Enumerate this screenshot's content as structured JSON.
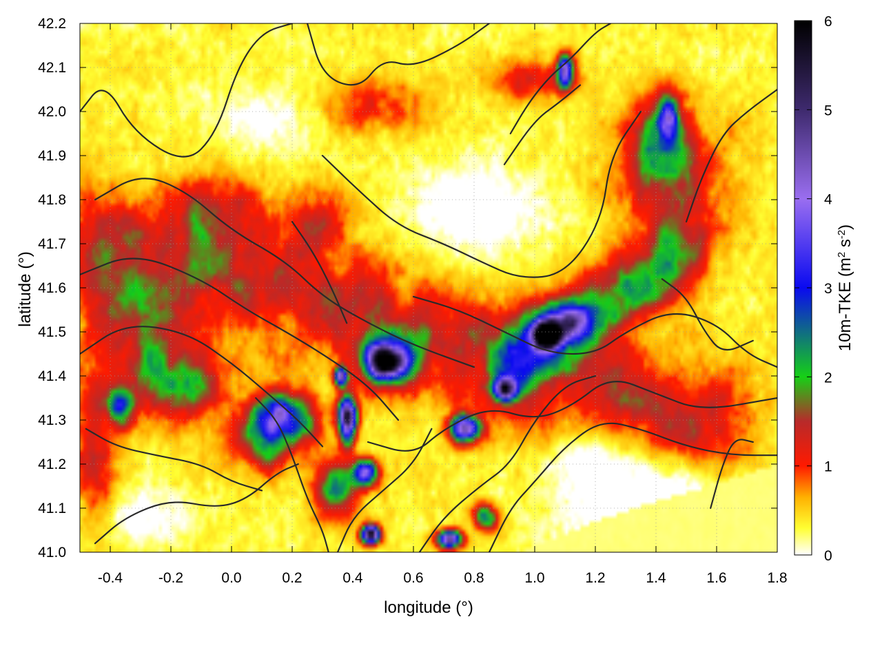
{
  "chart_data": {
    "type": "heatmap",
    "title": "",
    "xlabel": "longitude (°)",
    "ylabel": "latitude (°)",
    "xlim": [
      -0.5,
      1.8
    ],
    "ylim": [
      41.0,
      42.2
    ],
    "xticks": [
      -0.4,
      -0.2,
      0.0,
      0.2,
      0.4,
      0.6,
      0.8,
      1.0,
      1.2,
      1.4,
      1.6,
      1.8
    ],
    "xtick_labels": [
      "-0.4",
      "-0.2",
      "0.0",
      "0.2",
      "0.4",
      "0.6",
      "0.8",
      "1.0",
      "1.2",
      "1.4",
      "1.6",
      "1.8"
    ],
    "yticks": [
      41.0,
      41.1,
      41.2,
      41.3,
      41.4,
      41.5,
      41.6,
      41.7,
      41.8,
      41.9,
      42.0,
      42.1,
      42.2
    ],
    "ytick_labels": [
      "41.0",
      "41.1",
      "41.2",
      "41.3",
      "41.4",
      "41.5",
      "41.6",
      "41.7",
      "41.8",
      "41.9",
      "42.0",
      "42.1",
      "42.2"
    ],
    "grid": true,
    "colorbar": {
      "label_main": "10m-TKE (m",
      "label_sup1": "2",
      "label_mid": " s",
      "label_sup2": "-2",
      "label_end": ")",
      "range": [
        0,
        6
      ],
      "ticks": [
        0,
        1,
        2,
        3,
        4,
        5,
        6
      ],
      "tick_labels": [
        "0",
        "1",
        "2",
        "3",
        "4",
        "5",
        "6"
      ],
      "stops": [
        {
          "value": 0.0,
          "color": "#ffffff"
        },
        {
          "value": 0.3,
          "color": "#ffff33"
        },
        {
          "value": 0.65,
          "color": "#ffb000"
        },
        {
          "value": 1.0,
          "color": "#ff1a00"
        },
        {
          "value": 1.5,
          "color": "#b82a2a"
        },
        {
          "value": 2.0,
          "color": "#16d016"
        },
        {
          "value": 3.0,
          "color": "#0a0af0"
        },
        {
          "value": 4.0,
          "color": "#9a6ef0"
        },
        {
          "value": 5.0,
          "color": "#3e2a6e"
        },
        {
          "value": 6.0,
          "color": "#000000"
        }
      ]
    },
    "field_features": [
      {
        "name": "central-nw-se-band",
        "type": "band",
        "lon": [
          -0.45,
          1.6
        ],
        "lat": [
          41.72,
          41.28
        ],
        "width": 0.13,
        "value": 1.05
      },
      {
        "name": "upper-east-band",
        "type": "band",
        "lon": [
          0.95,
          1.5
        ],
        "lat": [
          41.45,
          41.68
        ],
        "width": 0.08,
        "value": 1.7
      },
      {
        "name": "west-hotspot",
        "type": "blob",
        "lon": -0.3,
        "lat": 41.5,
        "sx": 0.17,
        "sy": 0.16,
        "value": 1.25
      },
      {
        "name": "west-green",
        "type": "blob",
        "lon": -0.15,
        "lat": 41.38,
        "sx": 0.12,
        "sy": 0.07,
        "value": 1.9
      },
      {
        "name": "west-green-2",
        "type": "blob",
        "lon": -0.36,
        "lat": 41.33,
        "sx": 0.04,
        "sy": 0.04,
        "value": 2.4
      },
      {
        "name": "mid-west-red",
        "type": "blob",
        "lon": -0.05,
        "lat": 41.78,
        "sx": 0.18,
        "sy": 0.08,
        "value": 0.9
      },
      {
        "name": "core-blue-left",
        "type": "blob",
        "lon": 0.17,
        "lat": 41.31,
        "sx": 0.09,
        "sy": 0.05,
        "value": 3.1
      },
      {
        "name": "core-left-ring",
        "type": "blob",
        "lon": 0.12,
        "lat": 41.26,
        "sx": 0.12,
        "sy": 0.07,
        "value": 1.9
      },
      {
        "name": "core-blue-upper",
        "type": "blob",
        "lon": 0.52,
        "lat": 41.44,
        "sx": 0.09,
        "sy": 0.055,
        "value": 3.4
      },
      {
        "name": "core-purple",
        "type": "blob",
        "lon": 0.5,
        "lat": 41.43,
        "sx": 0.05,
        "sy": 0.03,
        "value": 4.2
      },
      {
        "name": "core-black",
        "type": "blob",
        "lon": 0.38,
        "lat": 41.3,
        "sx": 0.03,
        "sy": 0.05,
        "value": 6.0
      },
      {
        "name": "core-black-2",
        "type": "blob",
        "lon": 0.36,
        "lat": 41.4,
        "sx": 0.02,
        "sy": 0.02,
        "value": 5.5
      },
      {
        "name": "south-green",
        "type": "blob",
        "lon": 0.34,
        "lat": 41.14,
        "sx": 0.07,
        "sy": 0.06,
        "value": 2.2
      },
      {
        "name": "south-purple",
        "type": "blob",
        "lon": 0.44,
        "lat": 41.18,
        "sx": 0.04,
        "sy": 0.03,
        "value": 4.0
      },
      {
        "name": "south-black",
        "type": "blob",
        "lon": 0.46,
        "lat": 41.04,
        "sx": 0.03,
        "sy": 0.02,
        "value": 5.3
      },
      {
        "name": "south-violet-2",
        "type": "blob",
        "lon": 0.72,
        "lat": 41.03,
        "sx": 0.04,
        "sy": 0.02,
        "value": 4.7
      },
      {
        "name": "south-green-3",
        "type": "blob",
        "lon": 0.84,
        "lat": 41.08,
        "sx": 0.04,
        "sy": 0.03,
        "value": 2.2
      },
      {
        "name": "mid-violet",
        "type": "blob",
        "lon": 0.77,
        "lat": 41.28,
        "sx": 0.05,
        "sy": 0.03,
        "value": 4.2
      },
      {
        "name": "mid-violet-2",
        "type": "blob",
        "lon": 0.9,
        "lat": 41.37,
        "sx": 0.04,
        "sy": 0.025,
        "value": 3.7
      },
      {
        "name": "east-black",
        "type": "blob",
        "lon": 1.04,
        "lat": 41.49,
        "sx": 0.04,
        "sy": 0.03,
        "value": 5.6
      },
      {
        "name": "east-blue",
        "type": "blob",
        "lon": 1.1,
        "lat": 41.52,
        "sx": 0.07,
        "sy": 0.04,
        "value": 3.0
      },
      {
        "name": "ne-blue-1",
        "type": "blob",
        "lon": 1.44,
        "lat": 41.98,
        "sx": 0.03,
        "sy": 0.05,
        "value": 3.4
      },
      {
        "name": "ne-violet-2",
        "type": "blob",
        "lon": 1.1,
        "lat": 42.09,
        "sx": 0.025,
        "sy": 0.035,
        "value": 4.4
      },
      {
        "name": "ne-green",
        "type": "blob",
        "lon": 1.4,
        "lat": 41.93,
        "sx": 0.08,
        "sy": 0.11,
        "value": 1.8
      },
      {
        "name": "ne-red",
        "type": "blob",
        "lon": 1.45,
        "lat": 41.85,
        "sx": 0.2,
        "sy": 0.14,
        "value": 1.0
      },
      {
        "name": "north-central-red",
        "type": "blob",
        "lon": 0.3,
        "lat": 41.75,
        "sx": 0.1,
        "sy": 0.08,
        "value": 0.95
      },
      {
        "name": "north-red",
        "type": "blob",
        "lon": 0.45,
        "lat": 42.02,
        "sx": 0.18,
        "sy": 0.06,
        "value": 0.75
      },
      {
        "name": "north-east-red",
        "type": "blob",
        "lon": 1.0,
        "lat": 42.08,
        "sx": 0.15,
        "sy": 0.05,
        "value": 0.9
      },
      {
        "name": "far-west-red",
        "type": "blob",
        "lon": -0.45,
        "lat": 41.22,
        "sx": 0.07,
        "sy": 0.15,
        "value": 1.1
      },
      {
        "name": "central-north-yellow",
        "type": "blob",
        "lon": 0.8,
        "lat": 41.78,
        "sx": 0.22,
        "sy": 0.1,
        "value": -0.6
      },
      {
        "name": "north-white",
        "type": "blob",
        "lon": 0.1,
        "lat": 41.98,
        "sx": 0.18,
        "sy": 0.08,
        "value": -0.4
      },
      {
        "name": "se-calm-sea",
        "type": "blob",
        "lon": 1.45,
        "lat": 41.08,
        "sx": 0.3,
        "sy": 0.12,
        "value": -1.0
      },
      {
        "name": "se-land-calm",
        "type": "blob",
        "lon": 1.2,
        "lat": 41.22,
        "sx": 0.15,
        "sy": 0.08,
        "value": -0.6
      },
      {
        "name": "sw-calm",
        "type": "blob",
        "lon": -0.3,
        "lat": 41.08,
        "sx": 0.14,
        "sy": 0.06,
        "value": -0.5
      }
    ],
    "coastline": [
      {
        "lon": 0.95,
        "lat": 41.0
      },
      {
        "lon": 1.2,
        "lat": 41.07
      },
      {
        "lon": 1.42,
        "lat": 41.12
      },
      {
        "lon": 1.62,
        "lat": 41.16
      },
      {
        "lon": 1.8,
        "lat": 41.2
      }
    ],
    "sea_color": "#ffff66",
    "contours": [
      [
        [
          -0.5,
          42.0
        ],
        [
          -0.42,
          42.07
        ],
        [
          -0.32,
          41.95
        ],
        [
          -0.15,
          41.88
        ],
        [
          -0.05,
          41.95
        ],
        [
          0.02,
          42.1
        ],
        [
          0.1,
          42.18
        ],
        [
          0.2,
          42.2
        ]
      ],
      [
        [
          0.25,
          42.2
        ],
        [
          0.3,
          42.08
        ],
        [
          0.42,
          42.05
        ],
        [
          0.5,
          42.12
        ],
        [
          0.6,
          42.1
        ],
        [
          0.75,
          42.15
        ],
        [
          0.85,
          42.2
        ]
      ],
      [
        [
          -0.5,
          41.63
        ],
        [
          -0.32,
          41.68
        ],
        [
          -0.1,
          41.62
        ],
        [
          0.05,
          41.55
        ],
        [
          0.18,
          41.5
        ],
        [
          0.3,
          41.45
        ],
        [
          0.45,
          41.38
        ],
        [
          0.55,
          41.3
        ]
      ],
      [
        [
          -0.5,
          41.45
        ],
        [
          -0.35,
          41.52
        ],
        [
          -0.15,
          41.5
        ],
        [
          0.0,
          41.43
        ],
        [
          0.12,
          41.36
        ],
        [
          0.22,
          41.3
        ],
        [
          0.3,
          41.24
        ]
      ],
      [
        [
          -0.45,
          41.8
        ],
        [
          -0.3,
          41.86
        ],
        [
          -0.15,
          41.82
        ],
        [
          0.0,
          41.73
        ],
        [
          0.18,
          41.66
        ],
        [
          0.3,
          41.58
        ],
        [
          0.45,
          41.52
        ],
        [
          0.6,
          41.47
        ],
        [
          0.8,
          41.42
        ]
      ],
      [
        [
          0.3,
          41.9
        ],
        [
          0.42,
          41.82
        ],
        [
          0.55,
          41.74
        ],
        [
          0.7,
          41.7
        ],
        [
          0.82,
          41.66
        ],
        [
          0.95,
          41.62
        ],
        [
          1.1,
          41.63
        ],
        [
          1.22,
          41.75
        ],
        [
          1.25,
          41.9
        ],
        [
          1.35,
          42.0
        ]
      ],
      [
        [
          0.6,
          41.58
        ],
        [
          0.75,
          41.55
        ],
        [
          0.9,
          41.5
        ],
        [
          1.05,
          41.45
        ],
        [
          1.2,
          41.45
        ],
        [
          1.3,
          41.5
        ],
        [
          1.45,
          41.55
        ],
        [
          1.6,
          41.52
        ],
        [
          1.7,
          41.45
        ],
        [
          1.8,
          41.42
        ]
      ],
      [
        [
          0.45,
          41.25
        ],
        [
          0.6,
          41.22
        ],
        [
          0.7,
          41.28
        ],
        [
          0.85,
          41.33
        ],
        [
          1.0,
          41.3
        ],
        [
          1.12,
          41.33
        ],
        [
          1.25,
          41.4
        ],
        [
          1.4,
          41.36
        ],
        [
          1.55,
          41.32
        ],
        [
          1.8,
          41.35
        ]
      ],
      [
        [
          0.62,
          41.0
        ],
        [
          0.7,
          41.08
        ],
        [
          0.82,
          41.15
        ],
        [
          0.92,
          41.2
        ],
        [
          1.0,
          41.3
        ],
        [
          1.1,
          41.38
        ],
        [
          1.2,
          41.4
        ]
      ],
      [
        [
          0.85,
          41.0
        ],
        [
          0.92,
          41.1
        ],
        [
          1.0,
          41.16
        ],
        [
          1.1,
          41.24
        ],
        [
          1.22,
          41.3
        ],
        [
          1.35,
          41.28
        ],
        [
          1.5,
          41.24
        ],
        [
          1.65,
          41.22
        ],
        [
          1.8,
          41.22
        ]
      ],
      [
        [
          0.35,
          41.0
        ],
        [
          0.4,
          41.08
        ],
        [
          0.5,
          41.14
        ],
        [
          0.6,
          41.2
        ],
        [
          0.66,
          41.28
        ]
      ],
      [
        [
          0.08,
          41.35
        ],
        [
          0.15,
          41.3
        ],
        [
          0.2,
          41.22
        ],
        [
          0.25,
          41.12
        ],
        [
          0.3,
          41.05
        ],
        [
          0.32,
          41.0
        ]
      ],
      [
        [
          -0.45,
          41.02
        ],
        [
          -0.35,
          41.08
        ],
        [
          -0.2,
          41.12
        ],
        [
          -0.05,
          41.1
        ],
        [
          0.05,
          41.12
        ],
        [
          0.15,
          41.18
        ],
        [
          0.22,
          41.2
        ]
      ],
      [
        [
          -0.48,
          41.28
        ],
        [
          -0.38,
          41.24
        ],
        [
          -0.25,
          41.22
        ],
        [
          -0.1,
          41.2
        ],
        [
          0.0,
          41.16
        ],
        [
          0.1,
          41.14
        ]
      ],
      [
        [
          1.5,
          41.75
        ],
        [
          1.55,
          41.85
        ],
        [
          1.62,
          41.95
        ],
        [
          1.7,
          42.0
        ],
        [
          1.8,
          42.05
        ]
      ],
      [
        [
          0.92,
          41.95
        ],
        [
          0.98,
          42.02
        ],
        [
          1.05,
          42.08
        ],
        [
          1.12,
          42.12
        ],
        [
          1.2,
          42.18
        ],
        [
          1.25,
          42.2
        ]
      ],
      [
        [
          0.9,
          41.88
        ],
        [
          1.0,
          41.98
        ],
        [
          1.08,
          42.02
        ],
        [
          1.15,
          42.06
        ]
      ],
      [
        [
          0.2,
          41.75
        ],
        [
          0.27,
          41.68
        ],
        [
          0.33,
          41.6
        ],
        [
          0.38,
          41.52
        ]
      ],
      [
        [
          1.42,
          41.62
        ],
        [
          1.5,
          41.58
        ],
        [
          1.56,
          41.5
        ],
        [
          1.62,
          41.45
        ],
        [
          1.72,
          41.48
        ]
      ],
      [
        [
          1.58,
          41.1
        ],
        [
          1.62,
          41.2
        ],
        [
          1.66,
          41.26
        ],
        [
          1.72,
          41.25
        ]
      ]
    ]
  }
}
